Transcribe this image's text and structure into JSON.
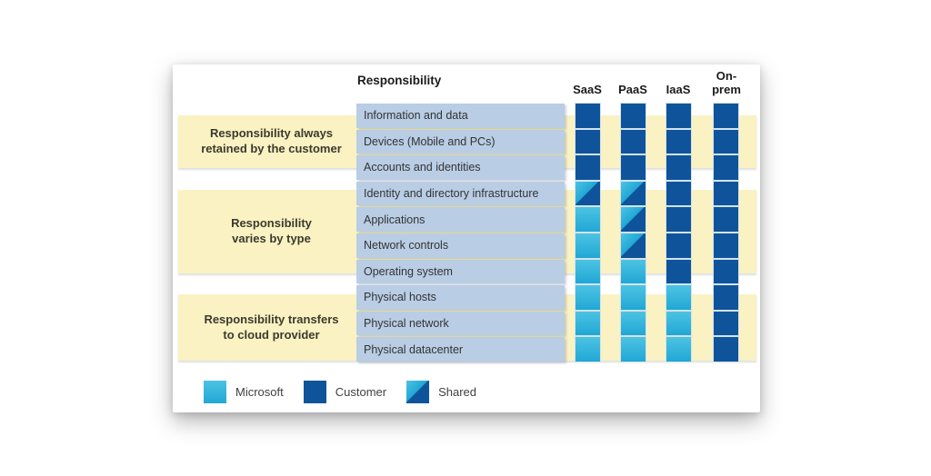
{
  "header": {
    "responsibility_label": "Responsibility"
  },
  "columns": [
    "SaaS",
    "PaaS",
    "IaaS",
    "On-prem"
  ],
  "groups": [
    {
      "label": "Responsibility always\nretained by the customer"
    },
    {
      "label": "Responsibility\nvaries by type"
    },
    {
      "label": "Responsibility transfers\nto cloud provider"
    }
  ],
  "rows": [
    {
      "name": "Information and data",
      "values": [
        "customer",
        "customer",
        "customer",
        "customer"
      ]
    },
    {
      "name": "Devices (Mobile and PCs)",
      "values": [
        "customer",
        "customer",
        "customer",
        "customer"
      ]
    },
    {
      "name": "Accounts and identities",
      "values": [
        "customer",
        "customer",
        "customer",
        "customer"
      ]
    },
    {
      "name": "Identity and directory infrastructure",
      "values": [
        "shared",
        "shared",
        "customer",
        "customer"
      ]
    },
    {
      "name": "Applications",
      "values": [
        "microsoft",
        "shared",
        "customer",
        "customer"
      ]
    },
    {
      "name": "Network controls",
      "values": [
        "microsoft",
        "shared",
        "customer",
        "customer"
      ]
    },
    {
      "name": "Operating system",
      "values": [
        "microsoft",
        "microsoft",
        "customer",
        "customer"
      ]
    },
    {
      "name": "Physical hosts",
      "values": [
        "microsoft",
        "microsoft",
        "microsoft",
        "customer"
      ]
    },
    {
      "name": "Physical network",
      "values": [
        "microsoft",
        "microsoft",
        "microsoft",
        "customer"
      ]
    },
    {
      "name": "Physical datacenter",
      "values": [
        "microsoft",
        "microsoft",
        "microsoft",
        "customer"
      ]
    }
  ],
  "legend": [
    {
      "label": "Microsoft",
      "key": "microsoft"
    },
    {
      "label": "Customer",
      "key": "customer"
    },
    {
      "label": "Shared",
      "key": "shared"
    }
  ],
  "colors": {
    "customer": "#0F549B",
    "microsoft": "#21A7D5",
    "microsoft_light": "#4DC3E3",
    "yellow": "#FAF2C2",
    "rowbox": "#B9CDE5"
  },
  "chart_data": {
    "type": "table",
    "title": "Responsibility",
    "columns": [
      "SaaS",
      "PaaS",
      "IaaS",
      "On-prem"
    ],
    "row_groups": [
      {
        "group": "Responsibility always retained by the customer",
        "rows": [
          "Information and data",
          "Devices (Mobile and PCs)",
          "Accounts and identities"
        ]
      },
      {
        "group": "Responsibility varies by type",
        "rows": [
          "Identity and directory infrastructure",
          "Applications",
          "Network controls",
          "Operating system"
        ]
      },
      {
        "group": "Responsibility transfers to cloud provider",
        "rows": [
          "Physical hosts",
          "Physical network",
          "Physical datacenter"
        ]
      }
    ],
    "legend": [
      "Microsoft",
      "Customer",
      "Shared"
    ]
  }
}
